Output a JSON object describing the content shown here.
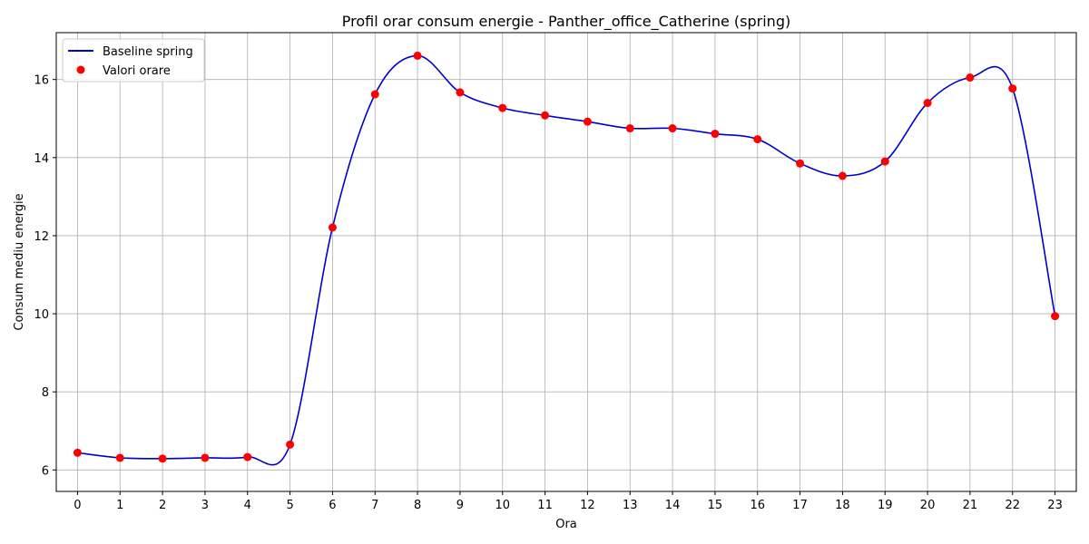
{
  "chart_data": {
    "type": "line",
    "title": "Profil orar consum energie - Panther_office_Catherine (spring)",
    "xlabel": "Ora",
    "ylabel": "Consum mediu energie",
    "xlim": [
      -0.5,
      23.5
    ],
    "ylim": [
      5.45,
      17.2
    ],
    "x_ticks": [
      0,
      1,
      2,
      3,
      4,
      5,
      6,
      7,
      8,
      9,
      10,
      11,
      12,
      13,
      14,
      15,
      16,
      17,
      18,
      19,
      20,
      21,
      22,
      23
    ],
    "y_ticks": [
      6,
      8,
      10,
      12,
      14,
      16
    ],
    "grid": true,
    "legend_position": "top-left",
    "series": [
      {
        "name": "Baseline spring",
        "kind": "line",
        "color": "#0000cc",
        "x": [
          0,
          1,
          2,
          3,
          4,
          5,
          6,
          7,
          8,
          9,
          10,
          11,
          12,
          13,
          14,
          15,
          16,
          17,
          18,
          19,
          20,
          21,
          22,
          23
        ],
        "y": [
          6.44,
          6.31,
          6.29,
          6.31,
          6.33,
          6.65,
          12.21,
          15.62,
          16.61,
          15.67,
          15.27,
          15.08,
          14.92,
          14.75,
          14.75,
          14.61,
          14.47,
          13.85,
          13.53,
          13.9,
          15.4,
          16.05,
          15.77,
          9.94
        ]
      },
      {
        "name": "Valori orare",
        "kind": "scatter",
        "color": "#ff0000",
        "x": [
          0,
          1,
          2,
          3,
          4,
          5,
          6,
          7,
          8,
          9,
          10,
          11,
          12,
          13,
          14,
          15,
          16,
          17,
          18,
          19,
          20,
          21,
          22,
          23
        ],
        "y": [
          6.44,
          6.31,
          6.29,
          6.31,
          6.33,
          6.65,
          12.21,
          15.62,
          16.61,
          15.67,
          15.27,
          15.08,
          14.92,
          14.75,
          14.75,
          14.61,
          14.47,
          13.85,
          13.53,
          13.9,
          15.4,
          16.05,
          15.77,
          9.94
        ]
      }
    ]
  }
}
